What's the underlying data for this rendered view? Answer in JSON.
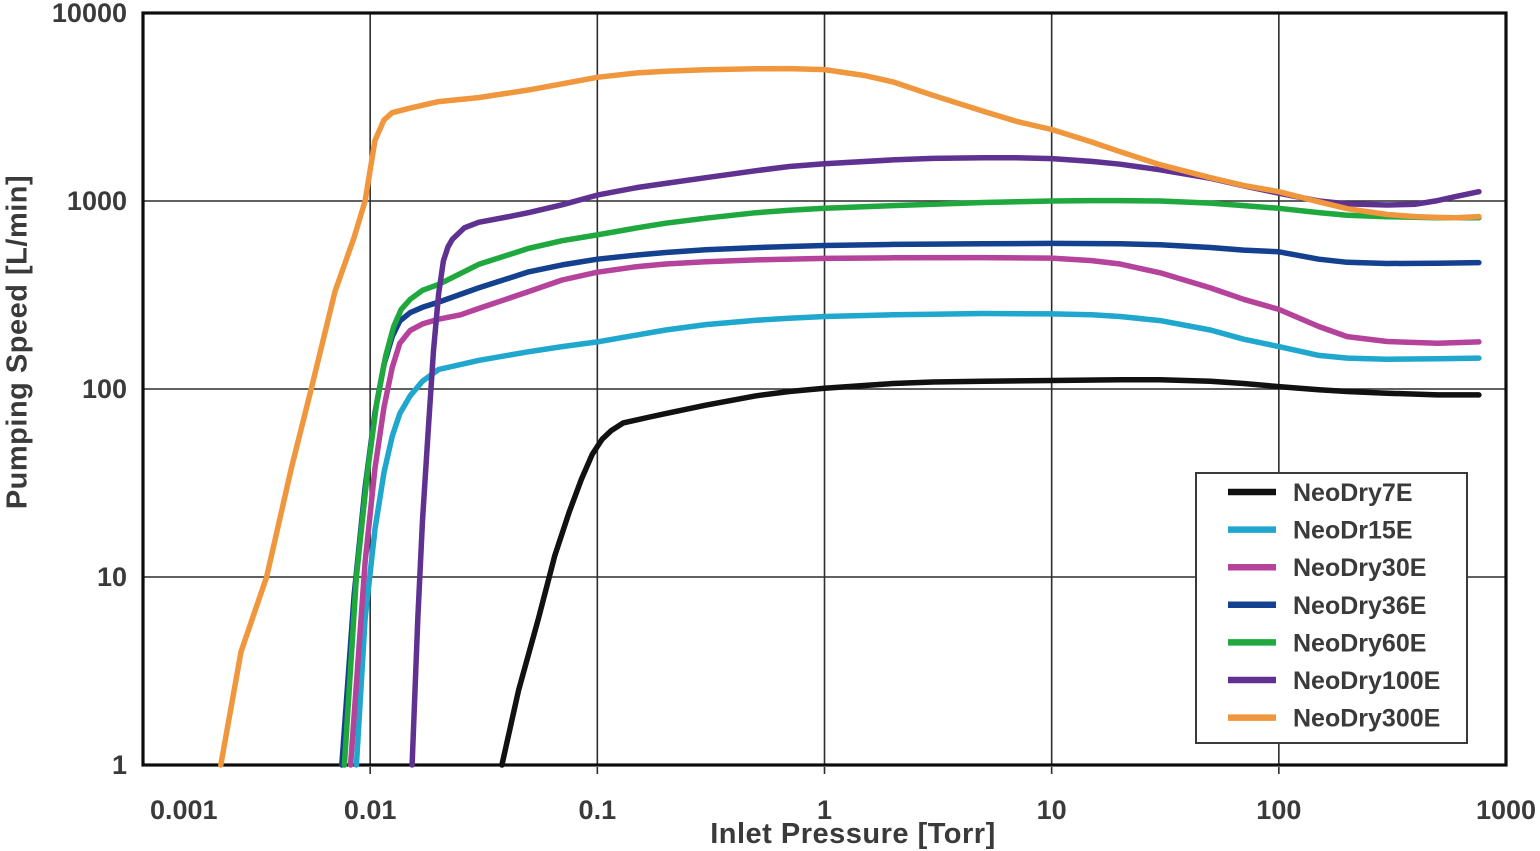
{
  "chart_data": {
    "type": "line",
    "title": "",
    "xlabel": "Inlet Pressure [Torr]",
    "ylabel": "Pumping Speed [L/min]",
    "x_scale": "log",
    "y_scale": "log",
    "xlim": [
      0.001,
      1000
    ],
    "ylim": [
      1,
      10000
    ],
    "grid": true,
    "legend_position": "lower-right",
    "x_ticks": [
      {
        "v": 0.001,
        "label": "0.001"
      },
      {
        "v": 0.01,
        "label": "0.01"
      },
      {
        "v": 0.1,
        "label": "0.1"
      },
      {
        "v": 1,
        "label": "1"
      },
      {
        "v": 10,
        "label": "10"
      },
      {
        "v": 100,
        "label": "100"
      },
      {
        "v": 1000,
        "label": "1000"
      }
    ],
    "y_ticks": [
      {
        "v": 1,
        "label": "1"
      },
      {
        "v": 10,
        "label": "10"
      },
      {
        "v": 100,
        "label": "100"
      },
      {
        "v": 1000,
        "label": "1000"
      },
      {
        "v": 10000,
        "label": "10000"
      }
    ],
    "series": [
      {
        "name": "NeoDry7E",
        "color": "#111111",
        "points": [
          [
            0.038,
            1
          ],
          [
            0.045,
            2.5
          ],
          [
            0.055,
            6
          ],
          [
            0.065,
            13
          ],
          [
            0.075,
            22
          ],
          [
            0.085,
            33
          ],
          [
            0.095,
            45
          ],
          [
            0.105,
            54
          ],
          [
            0.115,
            60
          ],
          [
            0.13,
            66
          ],
          [
            0.17,
            71
          ],
          [
            0.2,
            74
          ],
          [
            0.3,
            82
          ],
          [
            0.5,
            92
          ],
          [
            0.7,
            97
          ],
          [
            1,
            101
          ],
          [
            2,
            107
          ],
          [
            3,
            109
          ],
          [
            5,
            110
          ],
          [
            10,
            111
          ],
          [
            20,
            112
          ],
          [
            30,
            112
          ],
          [
            50,
            110
          ],
          [
            70,
            107
          ],
          [
            100,
            103
          ],
          [
            150,
            99
          ],
          [
            200,
            97
          ],
          [
            300,
            95
          ],
          [
            500,
            93
          ],
          [
            760,
            93
          ]
        ]
      },
      {
        "name": "NeoDr15E",
        "color": "#1FA7CE",
        "points": [
          [
            0.0087,
            1
          ],
          [
            0.0095,
            6
          ],
          [
            0.0105,
            18
          ],
          [
            0.0115,
            36
          ],
          [
            0.0125,
            56
          ],
          [
            0.0135,
            74
          ],
          [
            0.015,
            92
          ],
          [
            0.017,
            110
          ],
          [
            0.02,
            127
          ],
          [
            0.03,
            142
          ],
          [
            0.05,
            158
          ],
          [
            0.07,
            168
          ],
          [
            0.1,
            178
          ],
          [
            0.15,
            194
          ],
          [
            0.2,
            206
          ],
          [
            0.3,
            220
          ],
          [
            0.5,
            232
          ],
          [
            0.7,
            238
          ],
          [
            1,
            243
          ],
          [
            2,
            248
          ],
          [
            3,
            250
          ],
          [
            5,
            252
          ],
          [
            10,
            251
          ],
          [
            15,
            248
          ],
          [
            20,
            243
          ],
          [
            30,
            231
          ],
          [
            50,
            206
          ],
          [
            70,
            184
          ],
          [
            100,
            168
          ],
          [
            150,
            151
          ],
          [
            200,
            146
          ],
          [
            300,
            144
          ],
          [
            500,
            145
          ],
          [
            760,
            146
          ]
        ]
      },
      {
        "name": "NeoDry30E",
        "color": "#B5429B",
        "points": [
          [
            0.0082,
            1
          ],
          [
            0.0095,
            12
          ],
          [
            0.0105,
            38
          ],
          [
            0.0115,
            80
          ],
          [
            0.0125,
            130
          ],
          [
            0.0135,
            175
          ],
          [
            0.015,
            205
          ],
          [
            0.017,
            222
          ],
          [
            0.02,
            235
          ],
          [
            0.025,
            248
          ],
          [
            0.03,
            268
          ],
          [
            0.05,
            330
          ],
          [
            0.07,
            380
          ],
          [
            0.1,
            418
          ],
          [
            0.15,
            448
          ],
          [
            0.2,
            462
          ],
          [
            0.3,
            475
          ],
          [
            0.5,
            486
          ],
          [
            1,
            495
          ],
          [
            2,
            499
          ],
          [
            5,
            500
          ],
          [
            10,
            497
          ],
          [
            15,
            482
          ],
          [
            20,
            462
          ],
          [
            30,
            415
          ],
          [
            50,
            345
          ],
          [
            70,
            300
          ],
          [
            100,
            265
          ],
          [
            150,
            215
          ],
          [
            200,
            190
          ],
          [
            300,
            179
          ],
          [
            500,
            175
          ],
          [
            760,
            178
          ]
        ]
      },
      {
        "name": "NeoDry36E",
        "color": "#14418F",
        "points": [
          [
            0.0075,
            1
          ],
          [
            0.0085,
            8
          ],
          [
            0.0095,
            30
          ],
          [
            0.0105,
            75
          ],
          [
            0.0115,
            135
          ],
          [
            0.0125,
            190
          ],
          [
            0.0135,
            230
          ],
          [
            0.015,
            255
          ],
          [
            0.017,
            272
          ],
          [
            0.02,
            290
          ],
          [
            0.03,
            345
          ],
          [
            0.05,
            420
          ],
          [
            0.07,
            457
          ],
          [
            0.1,
            490
          ],
          [
            0.15,
            516
          ],
          [
            0.2,
            532
          ],
          [
            0.3,
            550
          ],
          [
            0.5,
            565
          ],
          [
            0.7,
            573
          ],
          [
            1,
            580
          ],
          [
            2,
            588
          ],
          [
            3,
            590
          ],
          [
            5,
            592
          ],
          [
            10,
            595
          ],
          [
            20,
            593
          ],
          [
            30,
            585
          ],
          [
            50,
            566
          ],
          [
            70,
            548
          ],
          [
            100,
            537
          ],
          [
            150,
            490
          ],
          [
            200,
            472
          ],
          [
            300,
            465
          ],
          [
            500,
            467
          ],
          [
            760,
            470
          ]
        ]
      },
      {
        "name": "NeoDry60E",
        "color": "#1FA83E",
        "points": [
          [
            0.0077,
            1
          ],
          [
            0.0087,
            10
          ],
          [
            0.0097,
            35
          ],
          [
            0.0107,
            85
          ],
          [
            0.0117,
            150
          ],
          [
            0.0127,
            215
          ],
          [
            0.0137,
            265
          ],
          [
            0.015,
            300
          ],
          [
            0.017,
            335
          ],
          [
            0.02,
            360
          ],
          [
            0.03,
            460
          ],
          [
            0.05,
            560
          ],
          [
            0.07,
            615
          ],
          [
            0.1,
            660
          ],
          [
            0.15,
            720
          ],
          [
            0.2,
            762
          ],
          [
            0.3,
            810
          ],
          [
            0.5,
            866
          ],
          [
            0.7,
            892
          ],
          [
            1,
            915
          ],
          [
            2,
            945
          ],
          [
            3,
            962
          ],
          [
            5,
            982
          ],
          [
            10,
            1000
          ],
          [
            15,
            1005
          ],
          [
            20,
            1005
          ],
          [
            30,
            1000
          ],
          [
            50,
            975
          ],
          [
            70,
            945
          ],
          [
            100,
            915
          ],
          [
            150,
            868
          ],
          [
            200,
            840
          ],
          [
            300,
            825
          ],
          [
            500,
            815
          ],
          [
            760,
            815
          ]
        ]
      },
      {
        "name": "NeoDry100E",
        "color": "#5F3292",
        "points": [
          [
            0.0153,
            1
          ],
          [
            0.0162,
            6
          ],
          [
            0.017,
            20
          ],
          [
            0.018,
            60
          ],
          [
            0.019,
            160
          ],
          [
            0.02,
            320
          ],
          [
            0.021,
            480
          ],
          [
            0.022,
            570
          ],
          [
            0.023,
            625
          ],
          [
            0.026,
            720
          ],
          [
            0.03,
            770
          ],
          [
            0.04,
            822
          ],
          [
            0.05,
            868
          ],
          [
            0.07,
            955
          ],
          [
            0.1,
            1075
          ],
          [
            0.15,
            1180
          ],
          [
            0.2,
            1240
          ],
          [
            0.3,
            1330
          ],
          [
            0.5,
            1450
          ],
          [
            0.7,
            1525
          ],
          [
            1,
            1580
          ],
          [
            2,
            1655
          ],
          [
            3,
            1685
          ],
          [
            5,
            1700
          ],
          [
            7,
            1700
          ],
          [
            10,
            1680
          ],
          [
            15,
            1625
          ],
          [
            20,
            1570
          ],
          [
            30,
            1465
          ],
          [
            50,
            1320
          ],
          [
            70,
            1205
          ],
          [
            100,
            1100
          ],
          [
            150,
            1000
          ],
          [
            200,
            965
          ],
          [
            300,
            952
          ],
          [
            400,
            962
          ],
          [
            500,
            1005
          ],
          [
            600,
            1055
          ],
          [
            760,
            1120
          ]
        ]
      },
      {
        "name": "NeoDry300E",
        "color": "#F0973E",
        "points": [
          [
            0.0022,
            1
          ],
          [
            0.0027,
            4
          ],
          [
            0.0035,
            10
          ],
          [
            0.0045,
            38
          ],
          [
            0.0055,
            100
          ],
          [
            0.007,
            330
          ],
          [
            0.0085,
            640
          ],
          [
            0.0095,
            1000
          ],
          [
            0.0105,
            2100
          ],
          [
            0.0115,
            2700
          ],
          [
            0.0125,
            2950
          ],
          [
            0.015,
            3120
          ],
          [
            0.02,
            3380
          ],
          [
            0.03,
            3550
          ],
          [
            0.05,
            3900
          ],
          [
            0.07,
            4200
          ],
          [
            0.1,
            4550
          ],
          [
            0.15,
            4800
          ],
          [
            0.2,
            4900
          ],
          [
            0.3,
            4990
          ],
          [
            0.5,
            5050
          ],
          [
            0.7,
            5060
          ],
          [
            1,
            5000
          ],
          [
            1.5,
            4650
          ],
          [
            2,
            4300
          ],
          [
            3,
            3650
          ],
          [
            5,
            3000
          ],
          [
            7,
            2650
          ],
          [
            10,
            2400
          ],
          [
            15,
            2060
          ],
          [
            20,
            1830
          ],
          [
            30,
            1560
          ],
          [
            50,
            1330
          ],
          [
            70,
            1210
          ],
          [
            100,
            1120
          ],
          [
            150,
            990
          ],
          [
            200,
            910
          ],
          [
            300,
            848
          ],
          [
            400,
            826
          ],
          [
            500,
            818
          ],
          [
            600,
            815
          ],
          [
            760,
            826
          ]
        ]
      }
    ]
  }
}
